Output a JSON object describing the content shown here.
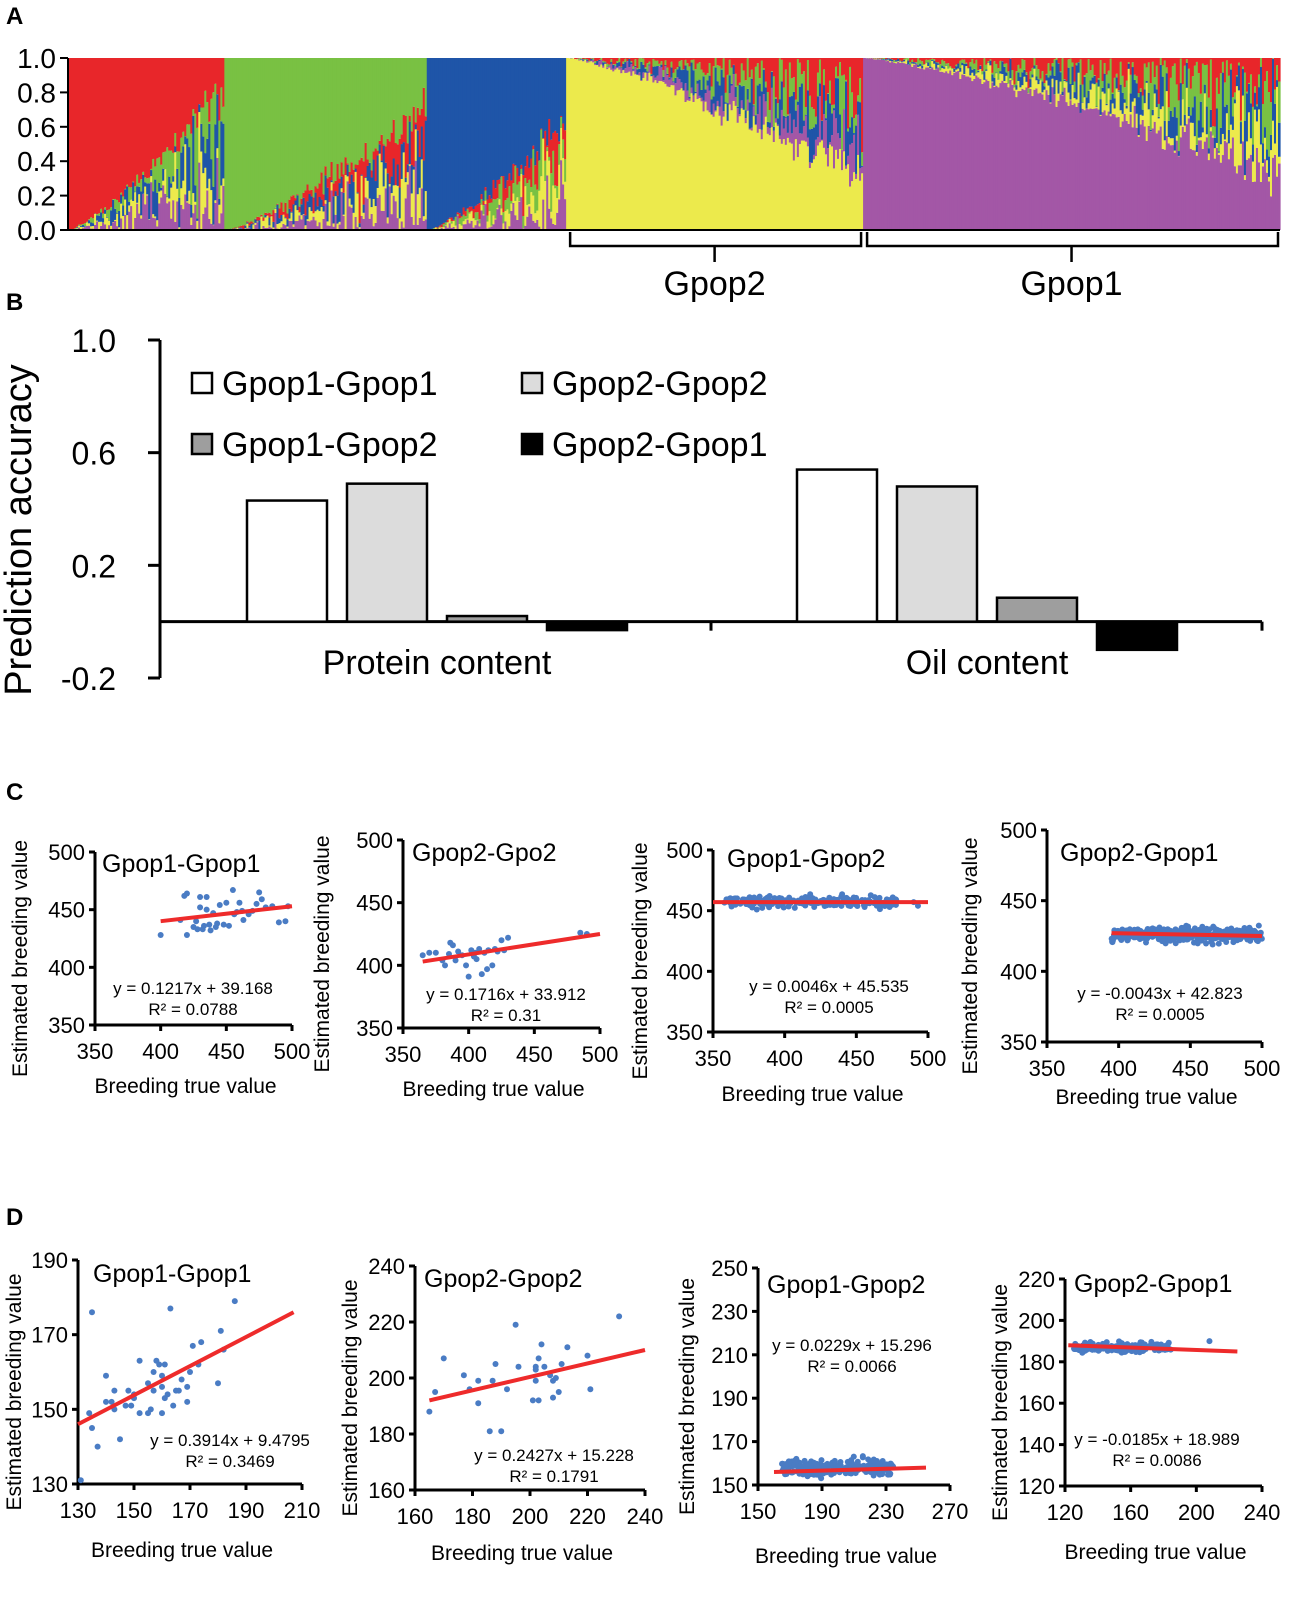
{
  "panel_labels": {
    "a": "A",
    "b": "B",
    "c": "C",
    "d": "D"
  },
  "chart_data": [
    {
      "id": "A",
      "type": "bar",
      "subtype": "stacked-admixture",
      "ylim": [
        0,
        1
      ],
      "yticks": [
        "1.0",
        "0.8",
        "0.6",
        "0.4",
        "0.2",
        "0.0"
      ],
      "clusters": [
        {
          "name": "red",
          "color": "#e8262a"
        },
        {
          "name": "green",
          "color": "#79c143"
        },
        {
          "name": "blue",
          "color": "#1f55a8"
        },
        {
          "name": "yellow",
          "color": "#ecea4c"
        },
        {
          "name": "purple",
          "color": "#a357a6"
        }
      ],
      "groups": [
        {
          "cluster": "red",
          "share": 0.129,
          "dominant_from": 1.0,
          "dominant_to": 0.15
        },
        {
          "cluster": "green",
          "share": 0.167,
          "dominant_from": 1.0,
          "dominant_to": 0.3
        },
        {
          "cluster": "blue",
          "share": 0.115,
          "dominant_from": 1.0,
          "dominant_to": 0.35
        },
        {
          "cluster": "yellow",
          "share": 0.245,
          "dominant_from": 1.0,
          "dominant_to": 0.3
        },
        {
          "cluster": "purple",
          "share": 0.344,
          "dominant_from": 1.0,
          "dominant_to": 0.35
        }
      ],
      "brackets": [
        {
          "label": "Gpop2",
          "group": "yellow"
        },
        {
          "label": "Gpop1",
          "group": "purple"
        }
      ]
    },
    {
      "id": "B",
      "type": "bar",
      "ylabel": "Prediction accuracy",
      "ylim": [
        -0.2,
        1.0
      ],
      "yticks": [
        "1.0",
        "0.6",
        "0.2",
        "-0.2"
      ],
      "ytick_values": [
        1.0,
        0.6,
        0.2,
        -0.2
      ],
      "categories": [
        "Protein content",
        "Oil content"
      ],
      "series": [
        {
          "name": "Gpop1-Gpop1",
          "color": "#ffffff",
          "values": [
            0.43,
            0.54
          ]
        },
        {
          "name": "Gpop2-Gpop2",
          "color": "#dcdcdc",
          "values": [
            0.49,
            0.48
          ]
        },
        {
          "name": "Gpop1-Gpop2",
          "color": "#9e9e9e",
          "values": [
            0.02,
            0.085
          ]
        },
        {
          "name": "Gpop2-Gpop1",
          "color": "#000000",
          "values": [
            -0.03,
            -0.1
          ]
        }
      ],
      "legend": "top-left"
    },
    {
      "id": "C1",
      "type": "scatter",
      "title": "Gpop1-Gpop1",
      "xlabel": "Breeding true value",
      "ylabel": "Estimated breeding value",
      "xlim": [
        350,
        500
      ],
      "ylim": [
        350,
        500
      ],
      "xticks": [
        "350",
        "400",
        "450",
        "500"
      ],
      "yticks": [
        "500",
        "450",
        "400",
        "350"
      ],
      "equation": "y = 0.1217x + 39.168",
      "r2": "R² = 0.0788",
      "fit": [
        [
          400,
          440
        ],
        [
          500,
          453
        ]
      ],
      "points": [
        [
          400,
          428
        ],
        [
          415,
          441
        ],
        [
          418,
          462
        ],
        [
          420,
          464
        ],
        [
          420,
          428
        ],
        [
          425,
          435
        ],
        [
          427,
          440
        ],
        [
          428,
          433
        ],
        [
          430,
          461
        ],
        [
          430,
          452
        ],
        [
          432,
          433
        ],
        [
          433,
          436
        ],
        [
          435,
          450
        ],
        [
          435,
          461
        ],
        [
          437,
          437
        ],
        [
          438,
          432
        ],
        [
          440,
          447
        ],
        [
          442,
          435
        ],
        [
          443,
          438
        ],
        [
          445,
          454
        ],
        [
          448,
          437
        ],
        [
          450,
          456
        ],
        [
          452,
          436
        ],
        [
          455,
          467
        ],
        [
          456,
          446
        ],
        [
          458,
          448
        ],
        [
          460,
          456
        ],
        [
          462,
          449
        ],
        [
          463,
          441
        ],
        [
          467,
          446
        ],
        [
          470,
          449
        ],
        [
          473,
          455
        ],
        [
          475,
          465
        ],
        [
          477,
          459
        ],
        [
          480,
          452
        ],
        [
          485,
          453
        ],
        [
          490,
          439
        ],
        [
          495,
          440
        ],
        [
          497,
          453
        ]
      ]
    },
    {
      "id": "C2",
      "type": "scatter",
      "title": "Gpop2-Gpo2",
      "xlabel": "Breeding true value",
      "ylabel": "Estimated breeding value",
      "xlim": [
        350,
        500
      ],
      "ylim": [
        350,
        500
      ],
      "xticks": [
        "350",
        "400",
        "450",
        "500"
      ],
      "yticks": [
        "500",
        "450",
        "400",
        "350"
      ],
      "equation": "y = 0.1716x + 33.912",
      "r2": "R² = 0.31",
      "fit": [
        [
          365,
          403
        ],
        [
          500,
          425
        ]
      ],
      "points": [
        [
          365,
          408
        ],
        [
          370,
          410
        ],
        [
          375,
          410
        ],
        [
          380,
          404
        ],
        [
          382,
          400
        ],
        [
          385,
          409
        ],
        [
          386,
          418
        ],
        [
          388,
          416
        ],
        [
          390,
          404
        ],
        [
          392,
          411
        ],
        [
          395,
          408
        ],
        [
          398,
          400
        ],
        [
          400,
          391
        ],
        [
          402,
          412
        ],
        [
          404,
          407
        ],
        [
          405,
          410
        ],
        [
          406,
          405
        ],
        [
          408,
          413
        ],
        [
          410,
          393
        ],
        [
          412,
          410
        ],
        [
          414,
          397
        ],
        [
          415,
          412
        ],
        [
          418,
          400
        ],
        [
          420,
          413
        ],
        [
          422,
          411
        ],
        [
          425,
          420
        ],
        [
          427,
          412
        ],
        [
          430,
          422
        ],
        [
          485,
          426
        ],
        [
          490,
          425
        ]
      ]
    },
    {
      "id": "C3",
      "type": "scatter",
      "title": "Gpop1-Gpop2",
      "xlabel": "Breeding true value",
      "ylabel": "Estimated breeding value",
      "xlim": [
        350,
        500
      ],
      "ylim": [
        350,
        500
      ],
      "xticks": [
        "350",
        "400",
        "450",
        "500"
      ],
      "yticks": [
        "500",
        "450",
        "400",
        "350"
      ],
      "equation": "y = 0.0046x + 45.535",
      "r2": "R² = 0.0005",
      "fit": [
        [
          350,
          457
        ],
        [
          500,
          457
        ]
      ],
      "cluster": {
        "n": 220,
        "x": [
          358,
          478
        ],
        "y_center": 457,
        "y_spread": 5
      },
      "points": [
        [
          490,
          457
        ],
        [
          493,
          454
        ]
      ]
    },
    {
      "id": "C4",
      "type": "scatter",
      "title": "Gpop2-Gpop1",
      "xlabel": "Breeding true value",
      "ylabel": "Estimated breeding value",
      "xlim": [
        350,
        500
      ],
      "ylim": [
        350,
        500
      ],
      "xticks": [
        "350",
        "400",
        "450",
        "500"
      ],
      "yticks": [
        "500",
        "450",
        "400",
        "350"
      ],
      "equation": "y = -0.0043x + 42.823",
      "r2": "R² = 0.0005",
      "fit": [
        [
          395,
          427
        ],
        [
          500,
          425
        ]
      ],
      "cluster": {
        "n": 320,
        "x": [
          395,
          500
        ],
        "y_center": 426,
        "y_spread": 6
      },
      "points": []
    },
    {
      "id": "D1",
      "type": "scatter",
      "title": "Gpop1-Gpop1",
      "xlabel": "Breeding true value",
      "ylabel": "Estimated breeding value",
      "xlim": [
        130,
        210
      ],
      "ylim": [
        130,
        190
      ],
      "xticks": [
        "130",
        "150",
        "170",
        "190",
        "210"
      ],
      "yticks": [
        "190",
        "170",
        "150",
        "130"
      ],
      "equation": "y = 0.3914x + 9.4795",
      "r2": "R² = 0.3469",
      "fit": [
        [
          130,
          146
        ],
        [
          207,
          176
        ]
      ],
      "points": [
        [
          131,
          131
        ],
        [
          135,
          176
        ],
        [
          134,
          149
        ],
        [
          135,
          145
        ],
        [
          137,
          140
        ],
        [
          140,
          159
        ],
        [
          140,
          152
        ],
        [
          142,
          152
        ],
        [
          143,
          155
        ],
        [
          143,
          150
        ],
        [
          145,
          142
        ],
        [
          147,
          151
        ],
        [
          148,
          155
        ],
        [
          149,
          151
        ],
        [
          150,
          154
        ],
        [
          150,
          153
        ],
        [
          152,
          163
        ],
        [
          152,
          149
        ],
        [
          155,
          157
        ],
        [
          155,
          149
        ],
        [
          156,
          150
        ],
        [
          157,
          160
        ],
        [
          157,
          155
        ],
        [
          158,
          163
        ],
        [
          159,
          162
        ],
        [
          160,
          159
        ],
        [
          160,
          156
        ],
        [
          160,
          149
        ],
        [
          161,
          162
        ],
        [
          161,
          153
        ],
        [
          162,
          154
        ],
        [
          163,
          177
        ],
        [
          164,
          151
        ],
        [
          165,
          155
        ],
        [
          166,
          155
        ],
        [
          167,
          158
        ],
        [
          169,
          156
        ],
        [
          169,
          152
        ],
        [
          170,
          160
        ],
        [
          171,
          167
        ],
        [
          173,
          162
        ],
        [
          174,
          168
        ],
        [
          180,
          157
        ],
        [
          181,
          171
        ],
        [
          182,
          166
        ],
        [
          186,
          179
        ]
      ]
    },
    {
      "id": "D2",
      "type": "scatter",
      "title": "Gpop2-Gpop2",
      "xlabel": "Breeding true value",
      "ylabel": "Estimated breeding value",
      "xlim": [
        160,
        240
      ],
      "ylim": [
        160,
        240
      ],
      "xticks": [
        "160",
        "180",
        "200",
        "220",
        "240"
      ],
      "yticks": [
        "240",
        "220",
        "200",
        "180",
        "160"
      ],
      "equation": "y = 0.2427x + 15.228",
      "r2": "R² = 0.1791",
      "fit": [
        [
          165,
          192
        ],
        [
          240,
          210
        ]
      ],
      "points": [
        [
          165,
          188
        ],
        [
          167,
          195
        ],
        [
          170,
          207
        ],
        [
          177,
          201
        ],
        [
          179,
          196
        ],
        [
          182,
          199
        ],
        [
          182,
          191
        ],
        [
          186,
          181
        ],
        [
          187,
          199
        ],
        [
          188,
          205
        ],
        [
          190,
          181
        ],
        [
          192,
          196
        ],
        [
          195,
          219
        ],
        [
          196,
          204
        ],
        [
          201,
          192
        ],
        [
          202,
          199
        ],
        [
          202,
          204
        ],
        [
          202,
          203
        ],
        [
          203,
          192
        ],
        [
          203,
          207
        ],
        [
          204,
          212
        ],
        [
          205,
          204
        ],
        [
          207,
          201
        ],
        [
          208,
          199
        ],
        [
          208,
          193
        ],
        [
          209,
          200
        ],
        [
          210,
          195
        ],
        [
          211,
          205
        ],
        [
          213,
          211
        ],
        [
          220,
          208
        ],
        [
          221,
          196
        ],
        [
          231,
          222
        ]
      ]
    },
    {
      "id": "D3",
      "type": "scatter",
      "title": "Gpop1-Gpop2",
      "xlabel": "Breeding true value",
      "ylabel": "Estimated breeding value",
      "xlim": [
        150,
        270
      ],
      "ylim": [
        150,
        250
      ],
      "xticks": [
        "150",
        "190",
        "230",
        "270"
      ],
      "yticks": [
        "250",
        "230",
        "210",
        "190",
        "170",
        "150"
      ],
      "equation": "y = 0.0229x + 15.296",
      "r2": "R² = 0.0066",
      "fit": [
        [
          160,
          156
        ],
        [
          255,
          158
        ]
      ],
      "cluster": {
        "n": 220,
        "x": [
          165,
          235
        ],
        "y_center": 158,
        "y_spread": 4
      },
      "points": []
    },
    {
      "id": "D4",
      "type": "scatter",
      "title": "Gpop2-Gpop1",
      "xlabel": "Breeding true value",
      "ylabel": "Estimated breeding value",
      "xlim": [
        120,
        240
      ],
      "ylim": [
        120,
        220
      ],
      "xticks": [
        "120",
        "160",
        "200",
        "240"
      ],
      "yticks": [
        "220",
        "200",
        "180",
        "160",
        "140",
        "120"
      ],
      "equation": "y = -0.0185x + 18.989",
      "r2": "R² = 0.0086",
      "fit": [
        [
          122,
          188
        ],
        [
          225,
          185
        ]
      ],
      "cluster": {
        "n": 220,
        "x": [
          125,
          185
        ],
        "y_center": 187,
        "y_spread": 2.5
      },
      "points": [
        [
          208,
          190
        ]
      ]
    }
  ]
}
